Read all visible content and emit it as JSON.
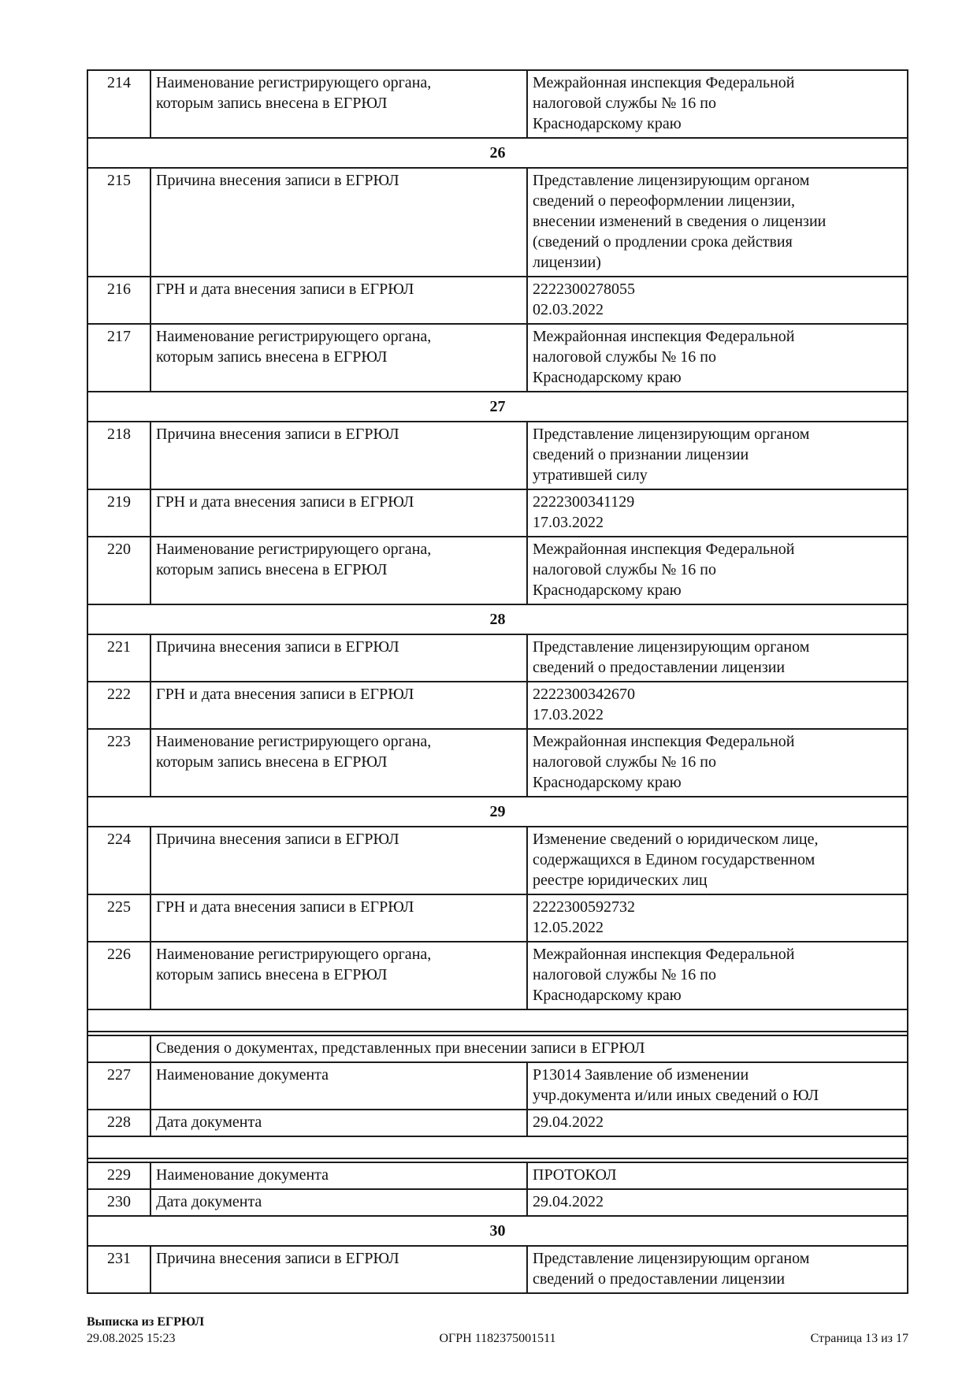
{
  "document": {
    "table": {
      "rows": [
        {
          "type": "entry",
          "num": "214",
          "label": "Наименование регистрирующего органа,\nкоторым запись внесена в ЕГРЮЛ",
          "value": "Межрайонная инспекция Федеральной\nналоговой службы № 16 по\nКраснодарскому краю"
        },
        {
          "type": "section",
          "title": "26"
        },
        {
          "type": "entry",
          "num": "215",
          "label": "Причина внесения записи в ЕГРЮЛ",
          "value": "Представление лицензирующим органом\nсведений о переоформлении лицензии,\nвнесении изменений в сведения о лицензии\n(сведений о продлении срока действия\nлицензии)"
        },
        {
          "type": "entry",
          "num": "216",
          "label": "ГРН и дата внесения записи в ЕГРЮЛ",
          "value": "2222300278055\n02.03.2022"
        },
        {
          "type": "entry",
          "num": "217",
          "label": "Наименование регистрирующего органа,\nкоторым запись внесена в ЕГРЮЛ",
          "value": "Межрайонная инспекция Федеральной\nналоговой службы № 16 по\nКраснодарскому краю"
        },
        {
          "type": "section",
          "title": "27"
        },
        {
          "type": "entry",
          "num": "218",
          "label": "Причина внесения записи в ЕГРЮЛ",
          "value": "Представление лицензирующим органом\nсведений о признании лицензии\nутратившей силу"
        },
        {
          "type": "entry",
          "num": "219",
          "label": "ГРН и дата внесения записи в ЕГРЮЛ",
          "value": "2222300341129\n17.03.2022"
        },
        {
          "type": "entry",
          "num": "220",
          "label": "Наименование регистрирующего органа,\nкоторым запись внесена в ЕГРЮЛ",
          "value": "Межрайонная инспекция Федеральной\nналоговой службы № 16 по\nКраснодарскому краю"
        },
        {
          "type": "section",
          "title": "28"
        },
        {
          "type": "entry",
          "num": "221",
          "label": "Причина внесения записи в ЕГРЮЛ",
          "value": "Представление лицензирующим органом\nсведений о предоставлении лицензии"
        },
        {
          "type": "entry",
          "num": "222",
          "label": "ГРН и дата внесения записи в ЕГРЮЛ",
          "value": "2222300342670\n17.03.2022"
        },
        {
          "type": "entry",
          "num": "223",
          "label": "Наименование регистрирующего органа,\nкоторым запись внесена в ЕГРЮЛ",
          "value": "Межрайонная инспекция Федеральной\nналоговой службы № 16 по\nКраснодарскому краю"
        },
        {
          "type": "section",
          "title": "29"
        },
        {
          "type": "entry",
          "num": "224",
          "label": "Причина внесения записи в ЕГРЮЛ",
          "value": "Изменение сведений о юридическом лице,\nсодержащихся в Едином государственном\nреестре юридических лиц"
        },
        {
          "type": "entry",
          "num": "225",
          "label": "ГРН и дата внесения записи в ЕГРЮЛ",
          "value": "2222300592732\n12.05.2022"
        },
        {
          "type": "entry",
          "num": "226",
          "label": "Наименование регистрирующего органа,\nкоторым запись внесена в ЕГРЮЛ",
          "value": "Межрайонная инспекция Федеральной\nналоговой службы № 16 по\nКраснодарскому краю"
        },
        {
          "type": "empty"
        },
        {
          "type": "rule"
        },
        {
          "type": "span",
          "text": "Сведения о документах, представленных при внесении записи в ЕГРЮЛ"
        },
        {
          "type": "entry",
          "num": "227",
          "label": "Наименование документа",
          "value": "Р13014 Заявление об изменении\nучр.документа и/или иных сведений о ЮЛ"
        },
        {
          "type": "entry",
          "num": "228",
          "label": "Дата документа",
          "value": "29.04.2022"
        },
        {
          "type": "empty"
        },
        {
          "type": "rule"
        },
        {
          "type": "entry",
          "num": "229",
          "label": "Наименование документа",
          "value": "ПРОТОКОЛ"
        },
        {
          "type": "entry",
          "num": "230",
          "label": "Дата документа",
          "value": "29.04.2022"
        },
        {
          "type": "section",
          "title": "30"
        },
        {
          "type": "entry",
          "num": "231",
          "label": "Причина внесения записи в ЕГРЮЛ",
          "value": "Представление лицензирующим органом\nсведений о предоставлении лицензии"
        }
      ]
    },
    "footer": {
      "doc_type": "Выписка из ЕГРЮЛ",
      "generated": "29.08.2025 15:23",
      "ogrn": "ОГРН 1182375001511",
      "page": "Страница 13 из 17"
    }
  }
}
